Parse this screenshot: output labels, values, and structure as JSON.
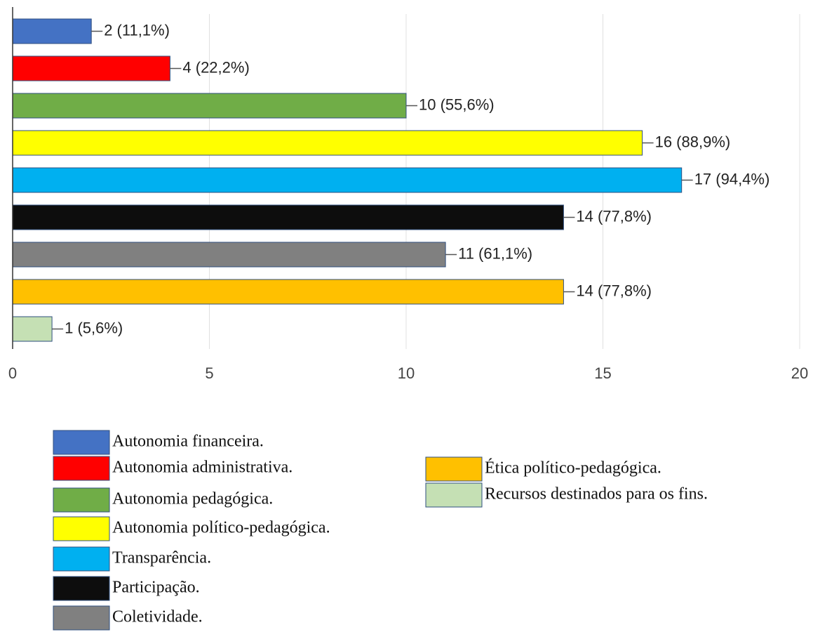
{
  "chart_data": {
    "type": "bar",
    "orientation": "horizontal",
    "categories": [
      "Autonomia financeira.",
      "Autonomia administrativa.",
      "Autonomia pedagógica.",
      "Autonomia político-pedagógica.",
      "Transparência.",
      "Participação.",
      "Coletividade.",
      "Ética político-pedagógica.",
      "Recursos destinados para os fins."
    ],
    "values": [
      2,
      4,
      10,
      16,
      17,
      14,
      11,
      14,
      1
    ],
    "value_labels": [
      "2 (11,1%)",
      "4 (22,2%)",
      "10 (55,6%)",
      "16 (88,9%)",
      "17 (94,4%)",
      "14 (77,8%)",
      "11 (61,1%)",
      "14 (77,8%)",
      "1 (5,6%)"
    ],
    "colors": [
      "#4472c4",
      "#ff0000",
      "#70ad47",
      "#ffff00",
      "#00b0f0",
      "#0d0d0d",
      "#808080",
      "#ffc000",
      "#c5e0b4"
    ],
    "xlim": [
      0,
      20
    ],
    "xticks": [
      0,
      5,
      10,
      15,
      20
    ],
    "grid": true
  }
}
